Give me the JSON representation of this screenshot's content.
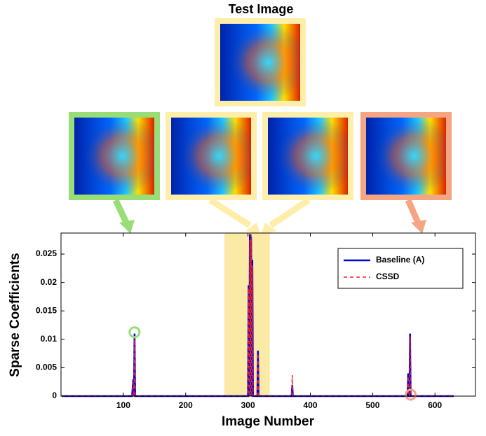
{
  "chart_data": {
    "type": "line",
    "header": "Test Image",
    "xlabel": "Image Number",
    "ylabel": "Sparse Coefficients",
    "x": [
      1,
      114,
      116,
      117,
      118,
      119,
      120,
      121,
      300,
      301,
      302,
      303,
      304,
      305,
      306,
      307,
      308,
      309,
      310,
      311,
      314,
      315,
      316,
      317,
      370,
      371,
      372,
      373,
      556,
      557,
      558,
      559,
      560,
      561,
      562,
      563,
      630
    ],
    "series": [
      {
        "name": "Baseline (A)",
        "color": "#0000dd",
        "dash": false,
        "values": [
          0,
          0,
          0.003,
          0,
          0.011,
          0,
          0,
          0,
          0,
          0.0195,
          0,
          0.0285,
          0,
          0.028,
          0,
          0.024,
          0,
          0,
          0,
          0,
          0,
          0,
          0.008,
          0,
          0,
          0.002,
          0,
          0,
          0,
          0.004,
          0,
          0,
          0.011,
          0,
          0,
          0,
          0
        ]
      },
      {
        "name": "CSSD",
        "color": "#ee2222",
        "dash": true,
        "values": [
          0,
          0,
          0.0025,
          0,
          0.0105,
          0,
          0,
          0,
          0,
          0.019,
          0,
          0.0275,
          0,
          0.0285,
          0,
          0.023,
          0,
          0,
          0,
          0,
          0,
          0,
          0.0075,
          0,
          0,
          0.0037,
          0,
          0,
          0,
          0.0035,
          0,
          0,
          0.0105,
          0,
          0,
          0,
          0
        ]
      }
    ],
    "highlight_range": [
      262,
      335
    ],
    "xlim": [
      0,
      665
    ],
    "ylim": [
      0,
      0.0287
    ],
    "xticks": [
      100,
      200,
      300,
      400,
      500,
      600
    ],
    "yticks": [
      0,
      0.005,
      0.01,
      0.015,
      0.02,
      0.025
    ],
    "legend": "upper right"
  }
}
